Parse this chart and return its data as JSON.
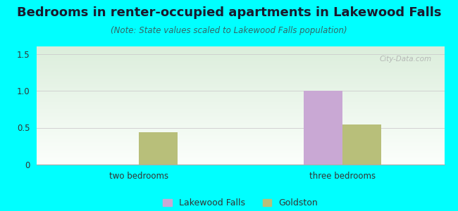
{
  "title": "Bedrooms in renter-occupied apartments in Lakewood Falls",
  "subtitle": "(Note: State values scaled to Lakewood Falls population)",
  "categories": [
    "two bedrooms",
    "three bedrooms"
  ],
  "series": {
    "Lakewood Falls": [
      0,
      1.0
    ],
    "Goldston": [
      0.44,
      0.54
    ]
  },
  "bar_colors": {
    "Lakewood Falls": "#c9a8d4",
    "Goldston": "#b8bf7a"
  },
  "legend_colors": {
    "Lakewood Falls": "#c9a8d4",
    "Goldston": "#b8bf7a"
  },
  "ylim": [
    0,
    1.6
  ],
  "yticks": [
    0,
    0.5,
    1.0,
    1.5
  ],
  "background_color": "#00FFFF",
  "title_color": "#1a1a2e",
  "subtitle_color": "#336666",
  "title_fontsize": 13,
  "subtitle_fontsize": 8.5,
  "axis_label_fontsize": 8.5,
  "watermark": "City-Data.com",
  "bar_width": 0.38,
  "group_positions": [
    1,
    3
  ]
}
